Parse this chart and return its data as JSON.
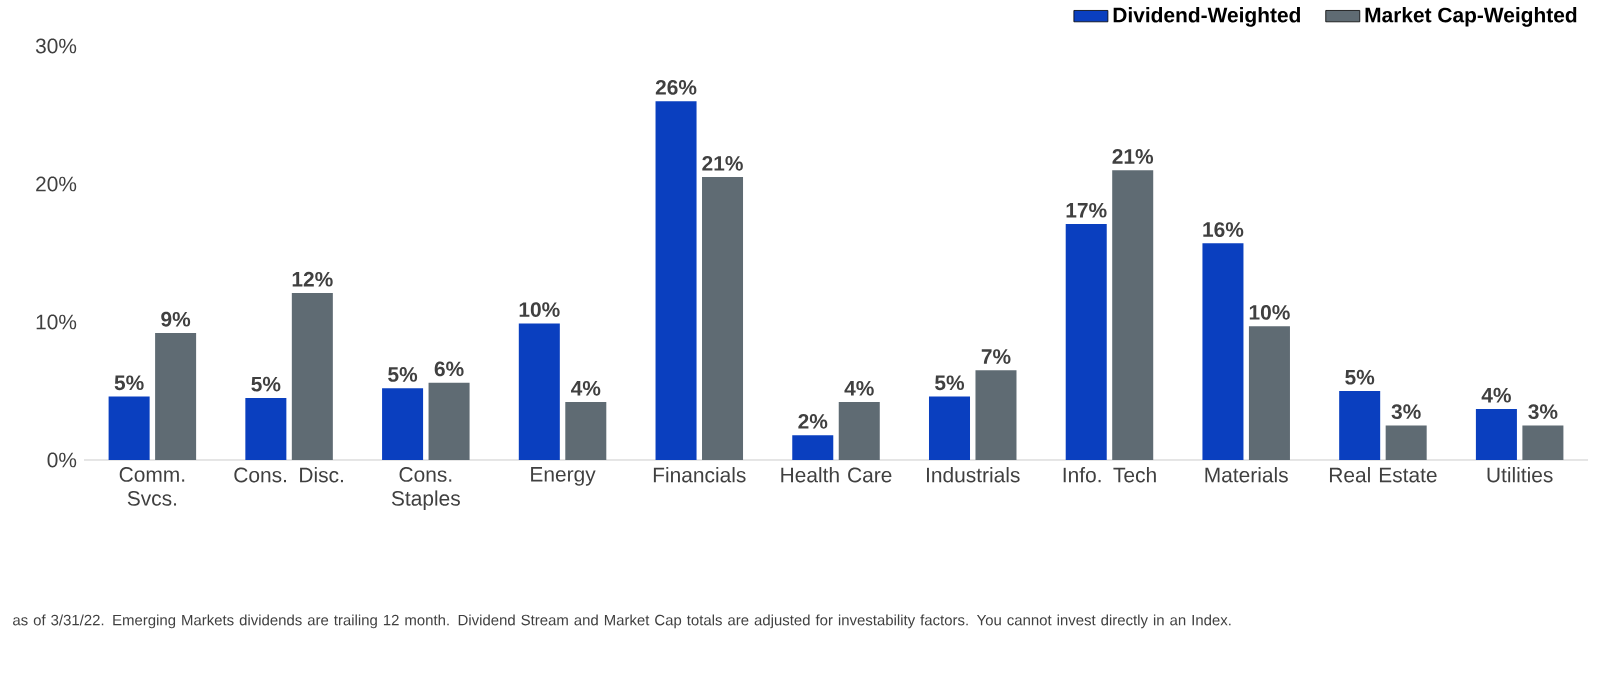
{
  "chart_data": {
    "type": "bar",
    "categories": [
      "Comm. Svcs.",
      "Cons. Disc.",
      "Cons. Staples",
      "Energy",
      "Financials",
      "Health Care",
      "Industrials",
      "Info. Tech",
      "Materials",
      "Real Estate",
      "Utilities"
    ],
    "series": [
      {
        "name": "Dividend-Weighted",
        "color": "#0a3fbf",
        "values": [
          4.6,
          4.5,
          5.2,
          9.9,
          26.0,
          1.8,
          4.6,
          17.1,
          15.7,
          5.0,
          3.7
        ],
        "value_labels": [
          "5%",
          "5%",
          "5%",
          "10%",
          "26%",
          "2%",
          "5%",
          "17%",
          "16%",
          "5%",
          "4%"
        ]
      },
      {
        "name": "Market Cap-Weighted",
        "color": "#5f6b73",
        "values": [
          9.2,
          12.1,
          5.6,
          4.2,
          20.5,
          4.2,
          6.5,
          21.0,
          9.7,
          2.5,
          2.5
        ],
        "value_labels": [
          "9%",
          "12%",
          "6%",
          "4%",
          "21%",
          "4%",
          "7%",
          "21%",
          "10%",
          "3%",
          "3%"
        ]
      }
    ],
    "ylim": [
      0,
      30
    ],
    "yticks": [
      {
        "value": 0,
        "label": "0%"
      },
      {
        "value": 10,
        "label": "10%"
      },
      {
        "value": 20,
        "label": "20%"
      },
      {
        "value": 30,
        "label": "30%"
      }
    ],
    "grid": false,
    "legend": "top right",
    "annotations": [
      "as of 3/31/22. Emerging Markets dividends are trailing 12 month. Dividend Stream and Market Cap totals are adjusted for investability factors. You cannot invest directly in an Index."
    ]
  }
}
